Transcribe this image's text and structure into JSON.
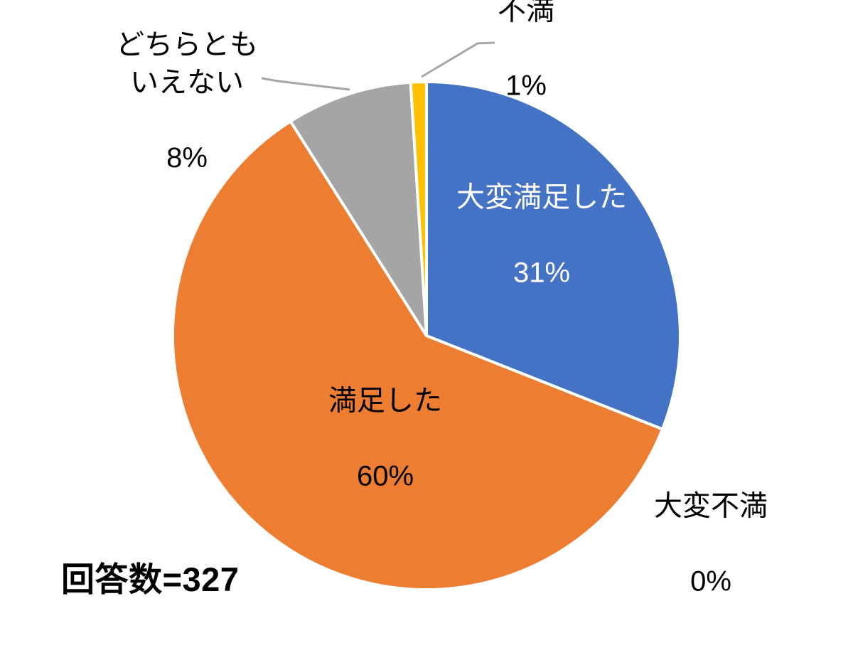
{
  "chart_data": {
    "type": "pie",
    "title": "",
    "legend": "none",
    "start_angle_deg": 0,
    "direction": "clockwise",
    "background_color": "#FFFFFF",
    "separator_color": "#FFFFFF",
    "leader_line_color": "#A6A6A6",
    "slices": [
      {
        "label": "大変満足した",
        "value": 31,
        "pct_label": "31%",
        "color": "#4472C4",
        "label_placement": "inside",
        "label_color": "#FFFFFF"
      },
      {
        "label": "満足した",
        "value": 60,
        "pct_label": "60%",
        "color": "#ED7D31",
        "label_placement": "inside",
        "label_color": "#000000"
      },
      {
        "label": "どちらとも\nいえない",
        "value": 8,
        "pct_label": "8%",
        "color": "#A5A5A5",
        "label_placement": "outside",
        "label_color": "#000000"
      },
      {
        "label": "不満",
        "value": 1,
        "pct_label": "1%",
        "color": "#FFC000",
        "label_placement": "outside",
        "label_color": "#000000"
      },
      {
        "label": "大変不満",
        "value": 0,
        "pct_label": "0%",
        "color": null,
        "label_placement": "outside",
        "label_color": "#000000"
      }
    ],
    "annotation": "回答数=327"
  }
}
